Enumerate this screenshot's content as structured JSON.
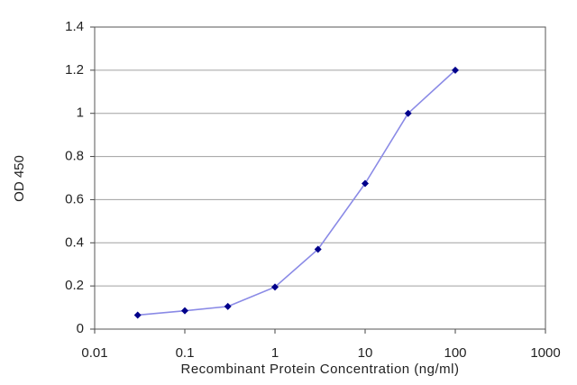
{
  "chart_data": {
    "type": "line",
    "x_label": "Recombinant Protein Concentration (ng/ml)",
    "y_label": "OD 450",
    "x": [
      0.03,
      0.1,
      0.3,
      1,
      3,
      10,
      30,
      100
    ],
    "series": [
      {
        "color": "#8a8ae6",
        "marker_color": "#00008b",
        "values": [
          0.065,
          0.085,
          0.105,
          0.195,
          0.37,
          0.675,
          1.0,
          1.2
        ]
      }
    ],
    "xscale": "log",
    "xlim": [
      0.01,
      1000
    ],
    "xticks": [
      0.01,
      0.1,
      1,
      10,
      100,
      1000
    ],
    "ylim": [
      0,
      1.4
    ],
    "yticks": [
      0,
      0.2,
      0.4,
      0.6,
      0.8,
      1,
      1.2,
      1.4
    ],
    "grid": true
  }
}
